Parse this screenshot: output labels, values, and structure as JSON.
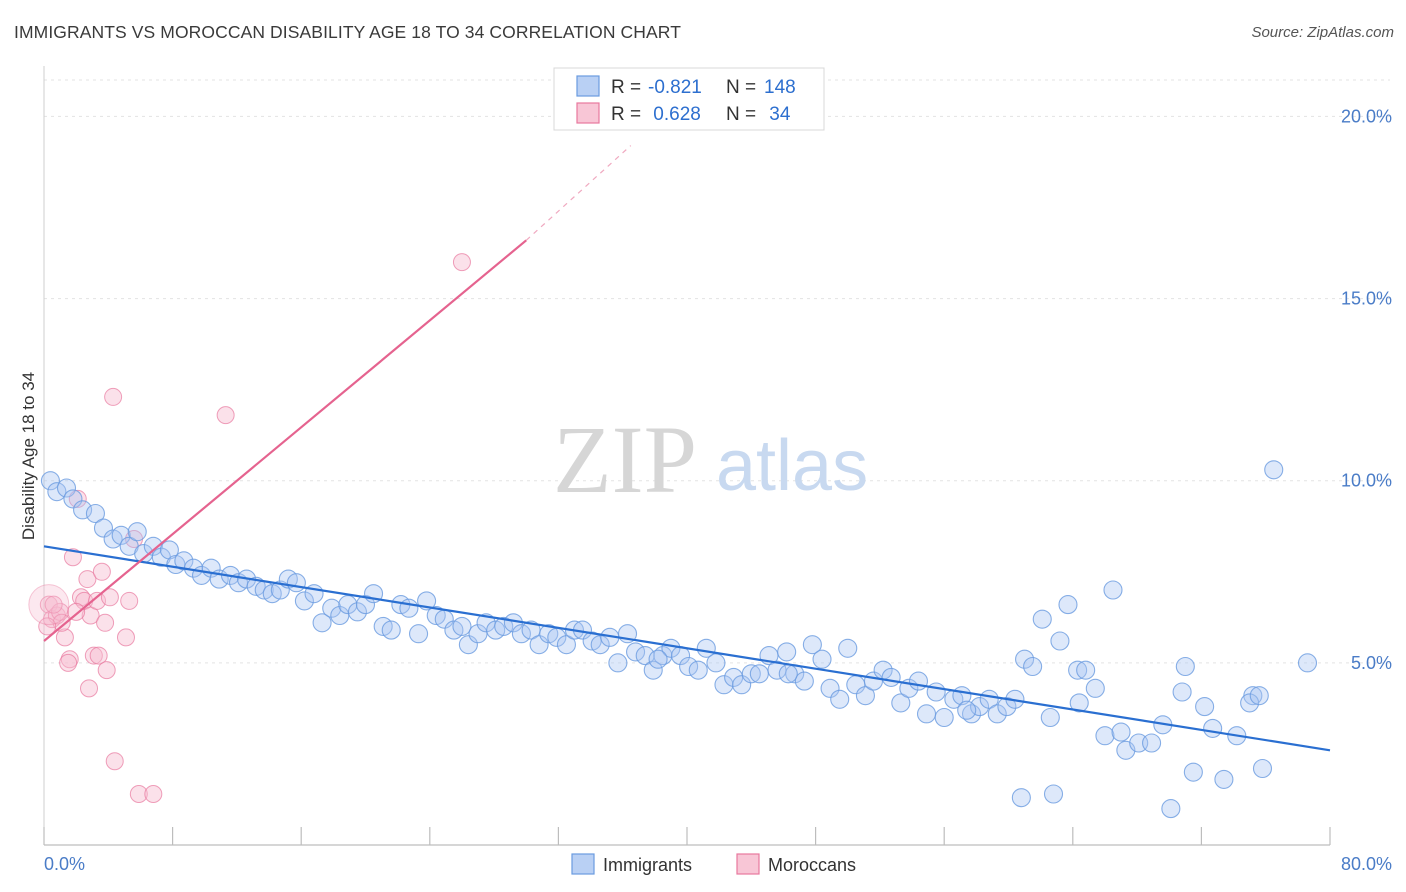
{
  "header": {
    "title": "IMMIGRANTS VS MOROCCAN DISABILITY AGE 18 TO 34 CORRELATION CHART",
    "source": "Source: ZipAtlas.com"
  },
  "watermark": {
    "zip": "ZIP",
    "atlas": "atlas"
  },
  "legend_top": {
    "rows": [
      {
        "r_label": "R = ",
        "r_value": "-0.821",
        "n_label": "N = ",
        "n_value": "148",
        "color": "#9dbdf0"
      },
      {
        "r_label": "R = ",
        "r_value": " 0.628",
        "n_label": "N = ",
        "n_value": " 34",
        "color": "#f5b3c8"
      }
    ]
  },
  "legend_bottom": {
    "items": [
      {
        "label": "Immigrants",
        "color": "#9dbdf0"
      },
      {
        "label": "Moroccans",
        "color": "#f5b3c8"
      }
    ]
  },
  "chart_data": {
    "type": "scatter",
    "title": "IMMIGRANTS VS MOROCCAN DISABILITY AGE 18 TO 34 CORRELATION CHART",
    "xlabel": "",
    "ylabel": "Disability Age 18 to 34",
    "xlim": [
      0,
      80
    ],
    "ylim": [
      0,
      21
    ],
    "x_tick_labels": [
      "0.0%",
      "80.0%"
    ],
    "y_tick_labels": [
      "5.0%",
      "10.0%",
      "15.0%",
      "20.0%"
    ],
    "y_ticks": [
      5,
      10,
      15,
      20
    ],
    "grid": true,
    "legend_placement": "top-center",
    "series": [
      {
        "name": "Immigrants",
        "color": "#6a9be0",
        "fill": "#a9c6f2",
        "trend": {
          "x": [
            0,
            80
          ],
          "y": [
            8.2,
            2.6
          ]
        },
        "points": [
          [
            0.4,
            10.0
          ],
          [
            0.8,
            9.7
          ],
          [
            1.4,
            9.8
          ],
          [
            1.8,
            9.5
          ],
          [
            2.4,
            9.2
          ],
          [
            3.2,
            9.1
          ],
          [
            3.7,
            8.7
          ],
          [
            4.3,
            8.4
          ],
          [
            4.8,
            8.5
          ],
          [
            5.3,
            8.2
          ],
          [
            5.8,
            8.6
          ],
          [
            6.2,
            8.0
          ],
          [
            6.8,
            8.2
          ],
          [
            7.3,
            7.9
          ],
          [
            7.8,
            8.1
          ],
          [
            8.2,
            7.7
          ],
          [
            8.7,
            7.8
          ],
          [
            9.3,
            7.6
          ],
          [
            9.8,
            7.4
          ],
          [
            10.4,
            7.6
          ],
          [
            10.9,
            7.3
          ],
          [
            11.6,
            7.4
          ],
          [
            12.1,
            7.2
          ],
          [
            12.6,
            7.3
          ],
          [
            13.2,
            7.1
          ],
          [
            13.7,
            7.0
          ],
          [
            14.2,
            6.9
          ],
          [
            14.7,
            7.0
          ],
          [
            15.2,
            7.3
          ],
          [
            15.7,
            7.2
          ],
          [
            16.2,
            6.7
          ],
          [
            16.8,
            6.9
          ],
          [
            17.3,
            6.1
          ],
          [
            17.9,
            6.5
          ],
          [
            18.4,
            6.3
          ],
          [
            18.9,
            6.6
          ],
          [
            19.5,
            6.4
          ],
          [
            20.0,
            6.6
          ],
          [
            20.5,
            6.9
          ],
          [
            21.1,
            6.0
          ],
          [
            21.6,
            5.9
          ],
          [
            22.2,
            6.6
          ],
          [
            22.7,
            6.5
          ],
          [
            23.3,
            5.8
          ],
          [
            23.8,
            6.7
          ],
          [
            24.4,
            6.3
          ],
          [
            24.9,
            6.2
          ],
          [
            25.5,
            5.9
          ],
          [
            26.0,
            6.0
          ],
          [
            26.4,
            5.5
          ],
          [
            27.0,
            5.8
          ],
          [
            27.5,
            6.1
          ],
          [
            28.1,
            5.9
          ],
          [
            28.6,
            6.0
          ],
          [
            29.2,
            6.1
          ],
          [
            29.7,
            5.8
          ],
          [
            30.3,
            5.9
          ],
          [
            30.8,
            5.5
          ],
          [
            31.4,
            5.8
          ],
          [
            31.9,
            5.7
          ],
          [
            32.5,
            5.5
          ],
          [
            33.0,
            5.9
          ],
          [
            33.5,
            5.9
          ],
          [
            34.1,
            5.6
          ],
          [
            34.6,
            5.5
          ],
          [
            35.2,
            5.7
          ],
          [
            35.7,
            5.0
          ],
          [
            36.3,
            5.8
          ],
          [
            36.8,
            5.3
          ],
          [
            37.4,
            5.2
          ],
          [
            37.9,
            4.8
          ],
          [
            38.5,
            5.2
          ],
          [
            39.0,
            5.4
          ],
          [
            39.6,
            5.2
          ],
          [
            40.1,
            4.9
          ],
          [
            40.7,
            4.8
          ],
          [
            41.2,
            5.4
          ],
          [
            41.8,
            5.0
          ],
          [
            42.3,
            4.4
          ],
          [
            42.9,
            4.6
          ],
          [
            43.4,
            4.4
          ],
          [
            44.0,
            4.7
          ],
          [
            44.5,
            4.7
          ],
          [
            45.1,
            5.2
          ],
          [
            45.6,
            4.8
          ],
          [
            46.2,
            5.3
          ],
          [
            46.7,
            4.7
          ],
          [
            47.3,
            4.5
          ],
          [
            47.8,
            5.5
          ],
          [
            48.4,
            5.1
          ],
          [
            48.9,
            4.3
          ],
          [
            49.5,
            4.0
          ],
          [
            50.0,
            5.4
          ],
          [
            50.5,
            4.4
          ],
          [
            51.1,
            4.1
          ],
          [
            51.6,
            4.5
          ],
          [
            52.2,
            4.8
          ],
          [
            52.7,
            4.6
          ],
          [
            53.3,
            3.9
          ],
          [
            53.8,
            4.3
          ],
          [
            54.4,
            4.5
          ],
          [
            54.9,
            3.6
          ],
          [
            55.5,
            4.2
          ],
          [
            56.0,
            3.5
          ],
          [
            56.6,
            4.0
          ],
          [
            57.1,
            4.1
          ],
          [
            57.7,
            3.6
          ],
          [
            58.2,
            3.8
          ],
          [
            58.8,
            4.0
          ],
          [
            59.3,
            3.6
          ],
          [
            59.9,
            3.8
          ],
          [
            60.4,
            4.0
          ],
          [
            61.0,
            5.1
          ],
          [
            61.5,
            4.9
          ],
          [
            62.1,
            6.2
          ],
          [
            62.6,
            3.5
          ],
          [
            63.2,
            5.6
          ],
          [
            63.7,
            6.6
          ],
          [
            64.3,
            4.8
          ],
          [
            64.8,
            4.8
          ],
          [
            65.4,
            4.3
          ],
          [
            66.0,
            3.0
          ],
          [
            66.5,
            7.0
          ],
          [
            67.0,
            3.1
          ],
          [
            67.3,
            2.6
          ],
          [
            68.1,
            2.8
          ],
          [
            68.9,
            2.8
          ],
          [
            69.6,
            3.3
          ],
          [
            70.8,
            4.2
          ],
          [
            71.0,
            4.9
          ],
          [
            71.5,
            2.0
          ],
          [
            72.2,
            3.8
          ],
          [
            72.7,
            3.2
          ],
          [
            73.4,
            1.8
          ],
          [
            74.2,
            3.0
          ],
          [
            75.2,
            4.1
          ],
          [
            75.0,
            3.9
          ],
          [
            75.6,
            4.1
          ],
          [
            75.8,
            2.1
          ],
          [
            76.5,
            10.3
          ],
          [
            78.6,
            5.0
          ],
          [
            60.8,
            1.3
          ],
          [
            62.8,
            1.4
          ],
          [
            70.1,
            1.0
          ],
          [
            64.4,
            3.9
          ],
          [
            57.4,
            3.7
          ],
          [
            46.3,
            4.7
          ],
          [
            38.2,
            5.1
          ]
        ]
      },
      {
        "name": "Moroccans",
        "color": "#e8789e",
        "fill": "#f7bdd0",
        "trend": {
          "x": [
            0,
            30
          ],
          "y": [
            5.6,
            16.6
          ]
        },
        "trend_dashed": {
          "x": [
            30,
            36.5
          ],
          "y": [
            16.6,
            19.2
          ]
        },
        "points": [
          [
            0.3,
            6.6
          ],
          [
            0.5,
            6.2
          ],
          [
            0.8,
            6.3
          ],
          [
            1.0,
            6.4
          ],
          [
            1.3,
            5.7
          ],
          [
            1.6,
            5.1
          ],
          [
            1.8,
            7.9
          ],
          [
            2.1,
            9.5
          ],
          [
            2.3,
            6.8
          ],
          [
            2.5,
            6.7
          ],
          [
            2.7,
            7.3
          ],
          [
            2.9,
            6.3
          ],
          [
            3.1,
            5.2
          ],
          [
            3.3,
            6.7
          ],
          [
            3.4,
            5.2
          ],
          [
            3.6,
            7.5
          ],
          [
            3.8,
            6.1
          ],
          [
            3.9,
            4.8
          ],
          [
            4.1,
            6.8
          ],
          [
            2.8,
            4.3
          ],
          [
            4.3,
            12.3
          ],
          [
            4.4,
            2.3
          ],
          [
            5.1,
            5.7
          ],
          [
            5.3,
            6.7
          ],
          [
            5.6,
            8.4
          ],
          [
            5.9,
            1.4
          ],
          [
            6.8,
            1.4
          ],
          [
            11.3,
            11.8
          ],
          [
            26.0,
            16.0
          ],
          [
            0.6,
            6.6
          ],
          [
            1.1,
            6.1
          ],
          [
            1.5,
            5.0
          ],
          [
            2.0,
            6.4
          ],
          [
            0.2,
            6.0
          ]
        ]
      }
    ]
  }
}
